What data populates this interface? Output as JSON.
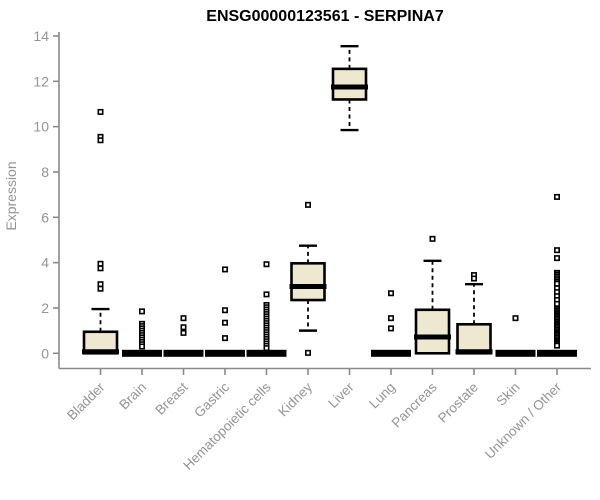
{
  "chart_data": {
    "type": "box",
    "title": "ENSG00000123561 - SERPINA7",
    "ylabel": "Expression",
    "xlabel": "",
    "ylim": [
      0,
      14
    ],
    "yticks": [
      0,
      2,
      4,
      6,
      8,
      10,
      12,
      14
    ],
    "grid": false,
    "legend": null,
    "colors": {
      "box_fill": "#EFE8D0",
      "box_stroke": "#000000",
      "median": "#000000",
      "whisker": "#000000",
      "outlier": "#000000",
      "axis": "#8a8a8a",
      "tick_label": "#949494",
      "title": "#000000",
      "background": "#ffffff"
    },
    "categories": [
      {
        "label": "Bladder",
        "q1": 0,
        "median": 0.07,
        "q3": 0.95,
        "whisker_low": 0,
        "whisker_high": 1.95,
        "outliers": [
          10.65,
          9.55,
          9.4,
          3.95,
          3.75,
          3.05,
          2.85
        ]
      },
      {
        "label": "Brain",
        "q1": 0,
        "median": 0,
        "q3": 0,
        "whisker_low": 0,
        "whisker_high": 0,
        "outliers": [
          1.85,
          1.3,
          1.2,
          1.1,
          1.0,
          0.9,
          0.8,
          0.7,
          0.6,
          0.5,
          0.4,
          0.3
        ]
      },
      {
        "label": "Breast",
        "q1": 0,
        "median": 0,
        "q3": 0,
        "whisker_low": 0,
        "whisker_high": 0,
        "outliers": [
          1.55,
          1.15,
          0.9
        ]
      },
      {
        "label": "Gastric",
        "q1": 0,
        "median": 0,
        "q3": 0,
        "whisker_low": 0,
        "whisker_high": 0,
        "outliers": [
          3.7,
          1.9,
          1.35,
          0.67
        ]
      },
      {
        "label": "Hematopoietic cells",
        "q1": 0,
        "median": 0,
        "q3": 0,
        "whisker_low": 0,
        "whisker_high": 0,
        "outliers": [
          3.93,
          2.6,
          2.13,
          2.03,
          1.93,
          1.83,
          1.73,
          1.63,
          1.53,
          1.43,
          1.33,
          1.23,
          1.13,
          1.03,
          0.93,
          0.83,
          0.73,
          0.63,
          0.53,
          0.43,
          0.33,
          0.23
        ]
      },
      {
        "label": "Kidney",
        "q1": 2.35,
        "median": 2.95,
        "q3": 3.97,
        "whisker_low": 1.0,
        "whisker_high": 4.75,
        "outliers": [
          6.55,
          0.02
        ]
      },
      {
        "label": "Liver",
        "q1": 11.2,
        "median": 11.75,
        "q3": 12.55,
        "whisker_low": 9.85,
        "whisker_high": 13.55,
        "outliers": []
      },
      {
        "label": "Lung",
        "q1": 0,
        "median": 0,
        "q3": 0,
        "whisker_low": 0,
        "whisker_high": 0,
        "outliers": [
          2.65,
          1.55,
          1.1
        ]
      },
      {
        "label": "Pancreas",
        "q1": 0,
        "median": 0.72,
        "q3": 1.92,
        "whisker_low": 0,
        "whisker_high": 4.08,
        "outliers": [
          5.05
        ]
      },
      {
        "label": "Prostate",
        "q1": 0,
        "median": 0.07,
        "q3": 1.28,
        "whisker_low": 0,
        "whisker_high": 3.05,
        "outliers": [
          3.45,
          3.3
        ]
      },
      {
        "label": "Skin",
        "q1": 0,
        "median": 0,
        "q3": 0,
        "whisker_low": 0,
        "whisker_high": 0,
        "outliers": [
          1.55
        ]
      },
      {
        "label": "Unknown / Other",
        "q1": 0,
        "median": 0,
        "q3": 0,
        "whisker_low": 0,
        "whisker_high": 0,
        "outliers": [
          6.9,
          4.55,
          4.2,
          3.55,
          3.47,
          3.39,
          3.31,
          3.23,
          3.15,
          3.07,
          2.87,
          2.7,
          2.52,
          2.35,
          2.18,
          1.95,
          1.88,
          1.81,
          1.74,
          1.67,
          1.6,
          1.53,
          1.46,
          1.39,
          1.32,
          1.25,
          1.18,
          1.11,
          1.04,
          0.97,
          0.9,
          0.83,
          0.76,
          0.69,
          0.62,
          0.55,
          0.48,
          0.41,
          0.34
        ]
      }
    ]
  }
}
